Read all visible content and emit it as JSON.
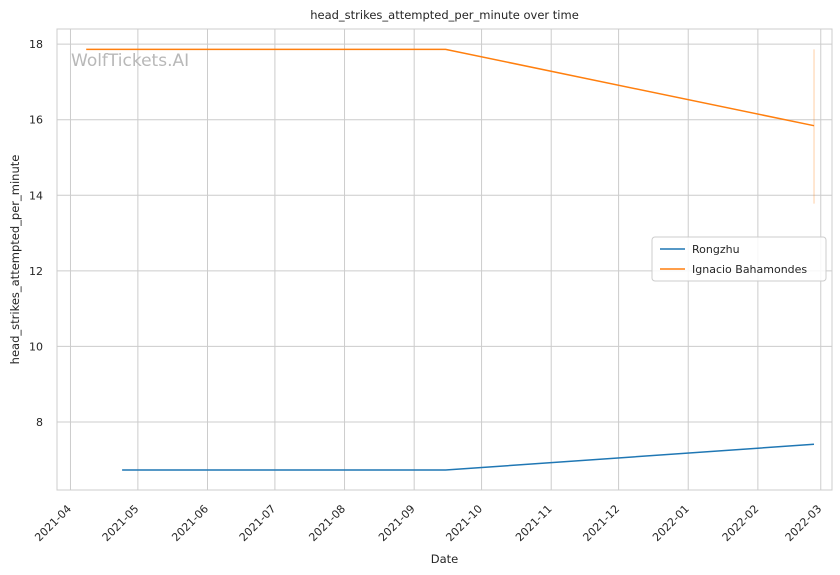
{
  "chart_data": {
    "type": "line",
    "title": "head_strikes_attempted_per_minute over time",
    "xlabel": "Date",
    "ylabel": "head_strikes_attempted_per_minute",
    "watermark": "WolfTickets.AI",
    "x_ticks": [
      "2021-04",
      "2021-05",
      "2021-06",
      "2021-07",
      "2021-08",
      "2021-09",
      "2021-10",
      "2021-11",
      "2021-12",
      "2022-01",
      "2022-02",
      "2022-03"
    ],
    "y_ticks": [
      8,
      10,
      12,
      14,
      16,
      18
    ],
    "xlim": [
      "2021-03-26",
      "2022-03-06"
    ],
    "ylim": [
      6.2,
      18.4
    ],
    "grid": true,
    "legend_position": "center-right",
    "series": [
      {
        "name": "Rongzhu",
        "color": "#1f77b4",
        "points": [
          {
            "x": "2021-04-24",
            "y": 6.73
          },
          {
            "x": "2021-09-15",
            "y": 6.73
          },
          {
            "x": "2022-02-26",
            "y": 7.41
          }
        ]
      },
      {
        "name": "Ignacio Bahamondes",
        "color": "#ff7f0e",
        "points": [
          {
            "x": "2021-04-08",
            "y": 17.86
          },
          {
            "x": "2021-09-15",
            "y": 17.86
          },
          {
            "x": "2022-02-26",
            "y": 15.84
          }
        ],
        "error_band": {
          "x": "2022-02-26",
          "low": 13.78,
          "high": 17.86
        }
      }
    ]
  }
}
